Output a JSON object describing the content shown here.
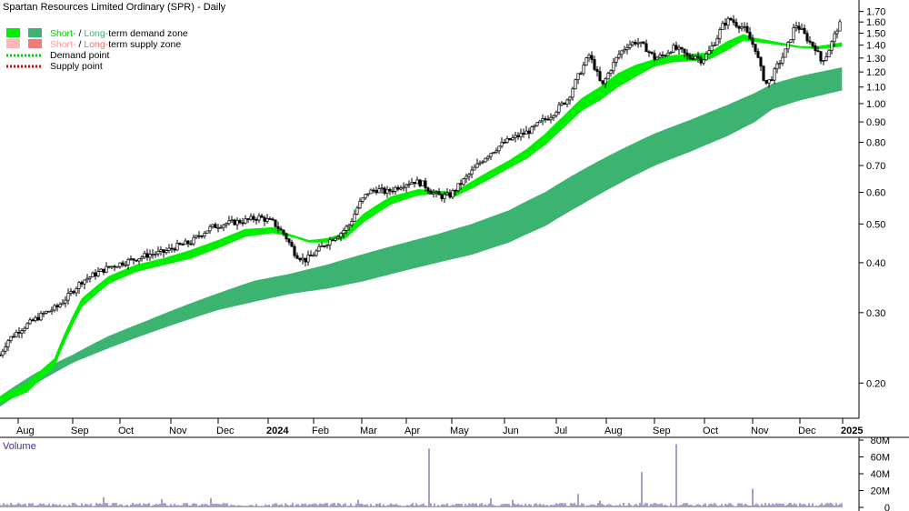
{
  "chart_data": {
    "type": "candlestick",
    "title": "Spartan Resources Limited Ordinary (SPR) - Daily",
    "legend": {
      "placement": "top-left",
      "items": [
        {
          "prefix": "Short-",
          "sep": " / ",
          "long": "Long-",
          "rest": "term demand zone",
          "short_color": "#00ee00",
          "long_color": "#3cb371",
          "text_color": "#000000"
        },
        {
          "prefix": "Short-",
          "sep": " / ",
          "long": "Long-",
          "rest": "term supply zone",
          "short_color": "#ffb6b6",
          "long_color": "#f47a7a",
          "text_color": "#000000",
          "prefix_text_color": "#ff9999",
          "long_text_color": "#ff6666"
        },
        {
          "label": "Demand point",
          "color": "#00cc00",
          "style": "dotted"
        },
        {
          "label": "Supply point",
          "color": "#dd0000",
          "style": "dotted"
        }
      ]
    },
    "x_ticks": [
      "Aug",
      "Sep",
      "Oct",
      "Nov",
      "Dec",
      "2024",
      "Feb",
      "Mar",
      "Apr",
      "May",
      "Jun",
      "Jul",
      "Aug",
      "Sep",
      "Oct",
      "Nov",
      "Dec",
      "2025"
    ],
    "y_axis": {
      "scale": "log",
      "min": 0.165,
      "max": 1.76,
      "ticks": [
        "0.20",
        "0.30",
        "0.40",
        "0.50",
        "0.60",
        "0.70",
        "0.80",
        "0.90",
        "1.00",
        "1.10",
        "1.20",
        "1.30",
        "1.40",
        "1.50",
        "1.60",
        "1.70"
      ],
      "grid": false,
      "position": "right"
    },
    "price_points": [
      [
        0,
        0.235
      ],
      [
        8,
        0.255
      ],
      [
        20,
        0.27
      ],
      [
        35,
        0.285
      ],
      [
        50,
        0.3
      ],
      [
        63,
        0.31
      ],
      [
        75,
        0.33
      ],
      [
        90,
        0.36
      ],
      [
        105,
        0.375
      ],
      [
        120,
        0.39
      ],
      [
        135,
        0.4
      ],
      [
        150,
        0.41
      ],
      [
        165,
        0.42
      ],
      [
        180,
        0.425
      ],
      [
        195,
        0.44
      ],
      [
        210,
        0.45
      ],
      [
        220,
        0.47
      ],
      [
        232,
        0.49
      ],
      [
        245,
        0.5
      ],
      [
        258,
        0.505
      ],
      [
        270,
        0.51
      ],
      [
        285,
        0.52
      ],
      [
        300,
        0.505
      ],
      [
        313,
        0.47
      ],
      [
        325,
        0.42
      ],
      [
        335,
        0.405
      ],
      [
        345,
        0.42
      ],
      [
        355,
        0.44
      ],
      [
        365,
        0.46
      ],
      [
        375,
        0.475
      ],
      [
        385,
        0.5
      ],
      [
        395,
        0.56
      ],
      [
        405,
        0.6
      ],
      [
        415,
        0.61
      ],
      [
        425,
        0.6
      ],
      [
        435,
        0.615
      ],
      [
        445,
        0.63
      ],
      [
        455,
        0.64
      ],
      [
        465,
        0.63
      ],
      [
        475,
        0.6
      ],
      [
        485,
        0.585
      ],
      [
        495,
        0.59
      ],
      [
        505,
        0.625
      ],
      [
        515,
        0.66
      ],
      [
        525,
        0.7
      ],
      [
        535,
        0.74
      ],
      [
        545,
        0.77
      ],
      [
        555,
        0.8
      ],
      [
        565,
        0.82
      ],
      [
        575,
        0.84
      ],
      [
        585,
        0.86
      ],
      [
        595,
        0.9
      ],
      [
        605,
        0.93
      ],
      [
        615,
        0.98
      ],
      [
        625,
        1.03
      ],
      [
        632,
        1.12
      ],
      [
        640,
        1.22
      ],
      [
        648,
        1.32
      ],
      [
        655,
        1.22
      ],
      [
        662,
        1.1
      ],
      [
        670,
        1.2
      ],
      [
        680,
        1.32
      ],
      [
        690,
        1.4
      ],
      [
        700,
        1.43
      ],
      [
        710,
        1.38
      ],
      [
        720,
        1.3
      ],
      [
        730,
        1.32
      ],
      [
        740,
        1.38
      ],
      [
        750,
        1.35
      ],
      [
        758,
        1.3
      ],
      [
        765,
        1.32
      ],
      [
        772,
        1.28
      ],
      [
        780,
        1.35
      ],
      [
        788,
        1.45
      ],
      [
        795,
        1.57
      ],
      [
        803,
        1.63
      ],
      [
        810,
        1.58
      ],
      [
        818,
        1.55
      ],
      [
        825,
        1.45
      ],
      [
        831,
        1.37
      ],
      [
        836,
        1.24
      ],
      [
        842,
        1.12
      ],
      [
        848,
        1.15
      ],
      [
        855,
        1.24
      ],
      [
        862,
        1.32
      ],
      [
        868,
        1.42
      ],
      [
        875,
        1.58
      ],
      [
        882,
        1.52
      ],
      [
        890,
        1.43
      ],
      [
        897,
        1.38
      ],
      [
        903,
        1.28
      ],
      [
        909,
        1.32
      ],
      [
        915,
        1.42
      ],
      [
        921,
        1.54
      ],
      [
        926,
        1.6
      ]
    ],
    "short_demand_zone": [
      [
        0,
        0.185,
        0.178
      ],
      [
        30,
        0.2,
        0.19
      ],
      [
        60,
        0.23,
        0.22
      ],
      [
        90,
        0.325,
        0.31
      ],
      [
        120,
        0.37,
        0.355
      ],
      [
        150,
        0.395,
        0.38
      ],
      [
        180,
        0.41,
        0.395
      ],
      [
        210,
        0.43,
        0.41
      ],
      [
        240,
        0.455,
        0.435
      ],
      [
        270,
        0.485,
        0.465
      ],
      [
        300,
        0.49,
        0.475
      ],
      [
        320,
        0.47,
        0.465
      ],
      [
        340,
        0.455,
        0.45
      ],
      [
        360,
        0.46,
        0.45
      ],
      [
        380,
        0.475,
        0.46
      ],
      [
        400,
        0.53,
        0.505
      ],
      [
        430,
        0.585,
        0.56
      ],
      [
        460,
        0.61,
        0.59
      ],
      [
        480,
        0.605,
        0.595
      ],
      [
        500,
        0.6,
        0.585
      ],
      [
        520,
        0.64,
        0.615
      ],
      [
        540,
        0.68,
        0.65
      ],
      [
        560,
        0.72,
        0.69
      ],
      [
        580,
        0.77,
        0.73
      ],
      [
        600,
        0.84,
        0.79
      ],
      [
        620,
        0.93,
        0.87
      ],
      [
        640,
        1.03,
        0.96
      ],
      [
        660,
        1.1,
        1.02
      ],
      [
        680,
        1.19,
        1.1
      ],
      [
        700,
        1.25,
        1.17
      ],
      [
        720,
        1.29,
        1.24
      ],
      [
        740,
        1.32,
        1.27
      ],
      [
        760,
        1.33,
        1.28
      ],
      [
        780,
        1.34,
        1.29
      ],
      [
        800,
        1.43,
        1.36
      ],
      [
        818,
        1.49,
        1.44
      ],
      [
        830,
        1.46,
        1.43
      ],
      [
        880,
        1.39,
        1.38
      ],
      [
        900,
        1.39,
        1.37
      ],
      [
        926,
        1.42,
        1.39
      ]
    ],
    "long_demand_zone": [
      [
        0,
        0.185,
        0.175
      ],
      [
        40,
        0.212,
        0.2
      ],
      [
        80,
        0.235,
        0.225
      ],
      [
        120,
        0.262,
        0.245
      ],
      [
        160,
        0.285,
        0.265
      ],
      [
        200,
        0.31,
        0.285
      ],
      [
        240,
        0.335,
        0.305
      ],
      [
        280,
        0.36,
        0.32
      ],
      [
        320,
        0.375,
        0.335
      ],
      [
        360,
        0.395,
        0.345
      ],
      [
        400,
        0.42,
        0.36
      ],
      [
        440,
        0.445,
        0.38
      ],
      [
        480,
        0.47,
        0.4
      ],
      [
        520,
        0.5,
        0.42
      ],
      [
        560,
        0.54,
        0.45
      ],
      [
        600,
        0.6,
        0.495
      ],
      [
        640,
        0.68,
        0.56
      ],
      [
        680,
        0.76,
        0.63
      ],
      [
        720,
        0.84,
        0.7
      ],
      [
        760,
        0.91,
        0.76
      ],
      [
        800,
        0.99,
        0.83
      ],
      [
        830,
        1.06,
        0.9
      ],
      [
        850,
        1.12,
        0.97
      ],
      [
        880,
        1.17,
        1.02
      ],
      [
        926,
        1.23,
        1.08
      ]
    ],
    "volume": {
      "label": "Volume",
      "y_max": 80000000,
      "ticks": [
        "0",
        "20M",
        "40M",
        "60M",
        "80M"
      ],
      "spikes": [
        [
          473,
          70000000
        ],
        [
          706,
          42000000
        ],
        [
          745,
          75000000
        ],
        [
          828,
          22000000
        ],
        [
          636,
          16000000
        ],
        [
          115,
          12000000
        ],
        [
          178,
          10000000
        ],
        [
          232,
          11000000
        ],
        [
          540,
          11000000
        ],
        [
          395,
          9000000
        ],
        [
          565,
          9000000
        ],
        [
          660,
          8000000
        ]
      ]
    }
  }
}
